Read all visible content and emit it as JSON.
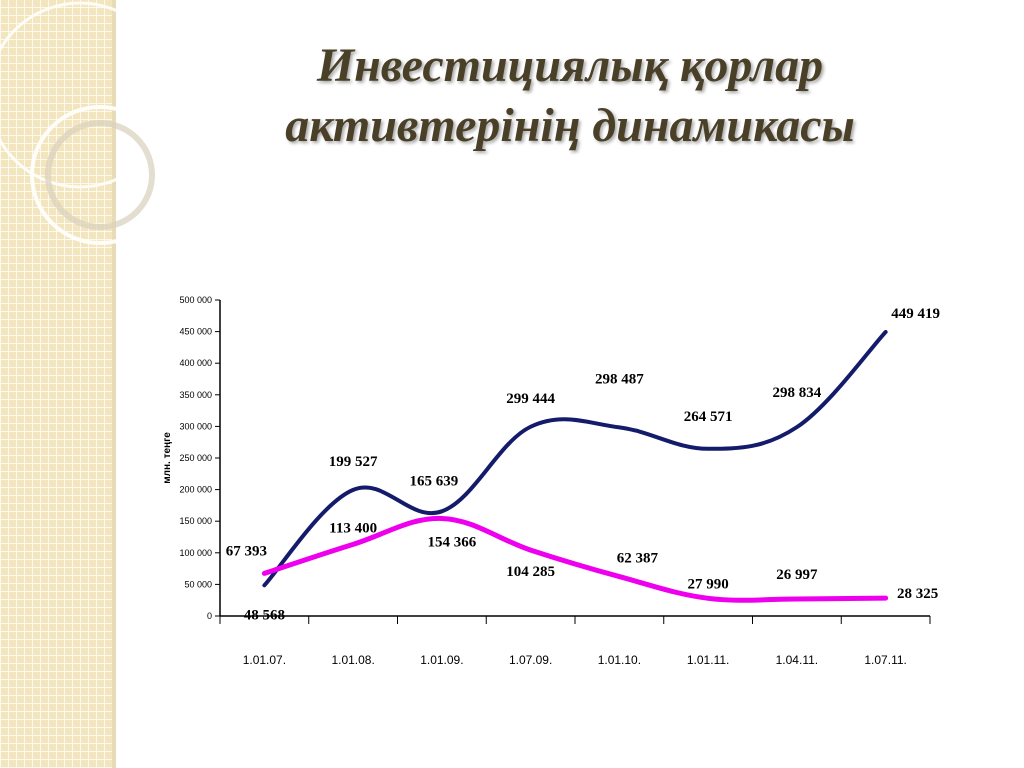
{
  "slide": {
    "title_line1": "Инвестициялық қорлар",
    "title_line2": "активтерінің динамикасы",
    "title_color": "#4a4028"
  },
  "chart_data": {
    "type": "line",
    "title": "",
    "ylabel": "млн. теңге",
    "xlabel": "",
    "categories": [
      "1.01.07.",
      "1.01.08.",
      "1.01.09.",
      "1.07.09.",
      "1.01.10.",
      "1.01.11.",
      "1.04.11.",
      "1.07.11."
    ],
    "ylim": [
      0,
      500000
    ],
    "yticks": [
      "0",
      "50 000",
      "100 000",
      "150 000",
      "200 000",
      "250 000",
      "300 000",
      "350 000",
      "400 000",
      "450 000",
      "500 000"
    ],
    "grid": false,
    "legend": "none",
    "series": [
      {
        "color": "#141b6b",
        "values": [
          48568,
          199527,
          165639,
          299444,
          298487,
          264571,
          298834,
          449419
        ],
        "labels": [
          "48 568",
          "199 527",
          "165 639",
          "299 444",
          "298 487",
          "264 571",
          "298 834",
          "449 419"
        ]
      },
      {
        "color": "#ee00ee",
        "values": [
          67393,
          113400,
          154366,
          104285,
          62387,
          27990,
          26997,
          28325
        ],
        "labels": [
          "67 393",
          "113 400",
          "154 366",
          "104 285",
          "62 387",
          "27 990",
          "26 997",
          "28 325"
        ]
      }
    ]
  }
}
